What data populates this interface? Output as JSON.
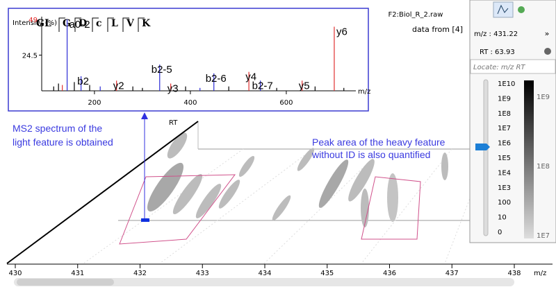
{
  "file": "F2:Biol_R_2.raw",
  "source_note": "data from [4]",
  "annotations": {
    "ms2": [
      "MS2 spectrum of the",
      "light feature is obtained"
    ],
    "heavy": [
      "Peak area of the heavy feature",
      "without ID is also quantified"
    ]
  },
  "rt_axis_label": "RT",
  "mz_axis": {
    "label": "m/z",
    "ticks": [
      430,
      431,
      432,
      433,
      434,
      435,
      436,
      437,
      438
    ]
  },
  "spectrum": {
    "type": "bar",
    "y_label": "Intensity (%)",
    "sequence": [
      "GL",
      "G",
      "D",
      "c",
      "L",
      "V",
      "K"
    ],
    "x_label": "m/z",
    "xlim": [
      90,
      745
    ],
    "ylim": [
      0,
      49
    ],
    "yticks": [
      24.5,
      49
    ],
    "xticks": [
      200,
      400,
      600
    ],
    "peaks": [
      {
        "label": "a0-2",
        "mz": 143,
        "intensity": 49,
        "color": "#2b2bd6"
      },
      {
        "label": "b2",
        "mz": 172,
        "intensity": 10,
        "color": "#2b2bd6"
      },
      {
        "label": "y2",
        "mz": 246,
        "intensity": 7,
        "color": "#e03030"
      },
      {
        "label": "b2-5",
        "mz": 336,
        "intensity": 18,
        "color": "#2b2bd6"
      },
      {
        "label": "y3",
        "mz": 359,
        "intensity": 5,
        "color": "#e03030"
      },
      {
        "label": "b2-6",
        "mz": 449,
        "intensity": 12,
        "color": "#2b2bd6"
      },
      {
        "label": "y4",
        "mz": 522,
        "intensity": 13,
        "color": "#e03030"
      },
      {
        "label": "b2-7",
        "mz": 546,
        "intensity": 7,
        "color": "#2b2bd6"
      },
      {
        "label": "y5",
        "mz": 633,
        "intensity": 7,
        "color": "#e03030"
      },
      {
        "label": "y6",
        "mz": 700,
        "intensity": 44,
        "color": "#e03030"
      }
    ],
    "minor_peaks": [
      {
        "mz": 115,
        "intensity": 3,
        "color": "#000000"
      },
      {
        "mz": 125,
        "intensity": 5,
        "color": "#000000"
      },
      {
        "mz": 133,
        "intensity": 4,
        "color": "#e03030"
      },
      {
        "mz": 158,
        "intensity": 6,
        "color": "#000000"
      },
      {
        "mz": 190,
        "intensity": 4,
        "color": "#000000"
      },
      {
        "mz": 212,
        "intensity": 3,
        "color": "#2b2bd6"
      },
      {
        "mz": 280,
        "intensity": 3,
        "color": "#000000"
      },
      {
        "mz": 300,
        "intensity": 2,
        "color": "#000000"
      },
      {
        "mz": 390,
        "intensity": 3,
        "color": "#000000"
      },
      {
        "mz": 420,
        "intensity": 2,
        "color": "#2b2bd6"
      },
      {
        "mz": 480,
        "intensity": 3,
        "color": "#000000"
      },
      {
        "mz": 580,
        "intensity": 2,
        "color": "#000000"
      },
      {
        "mz": 660,
        "intensity": 3,
        "color": "#000000"
      },
      {
        "mz": 720,
        "intensity": 2,
        "color": "#000000"
      }
    ]
  },
  "panel": {
    "mz_readout": "m/z : 431.22",
    "rt_readout": "RT : 63.93",
    "locate_placeholder": "Locate: m/z RT",
    "scale_labels": [
      "1E10",
      "1E9",
      "1E8",
      "1E7",
      "1E6",
      "1E5",
      "1E4",
      "1E3",
      "100",
      "10",
      "0"
    ],
    "colorbar_labels": [
      "1E9",
      "1E8",
      "1E7"
    ]
  }
}
